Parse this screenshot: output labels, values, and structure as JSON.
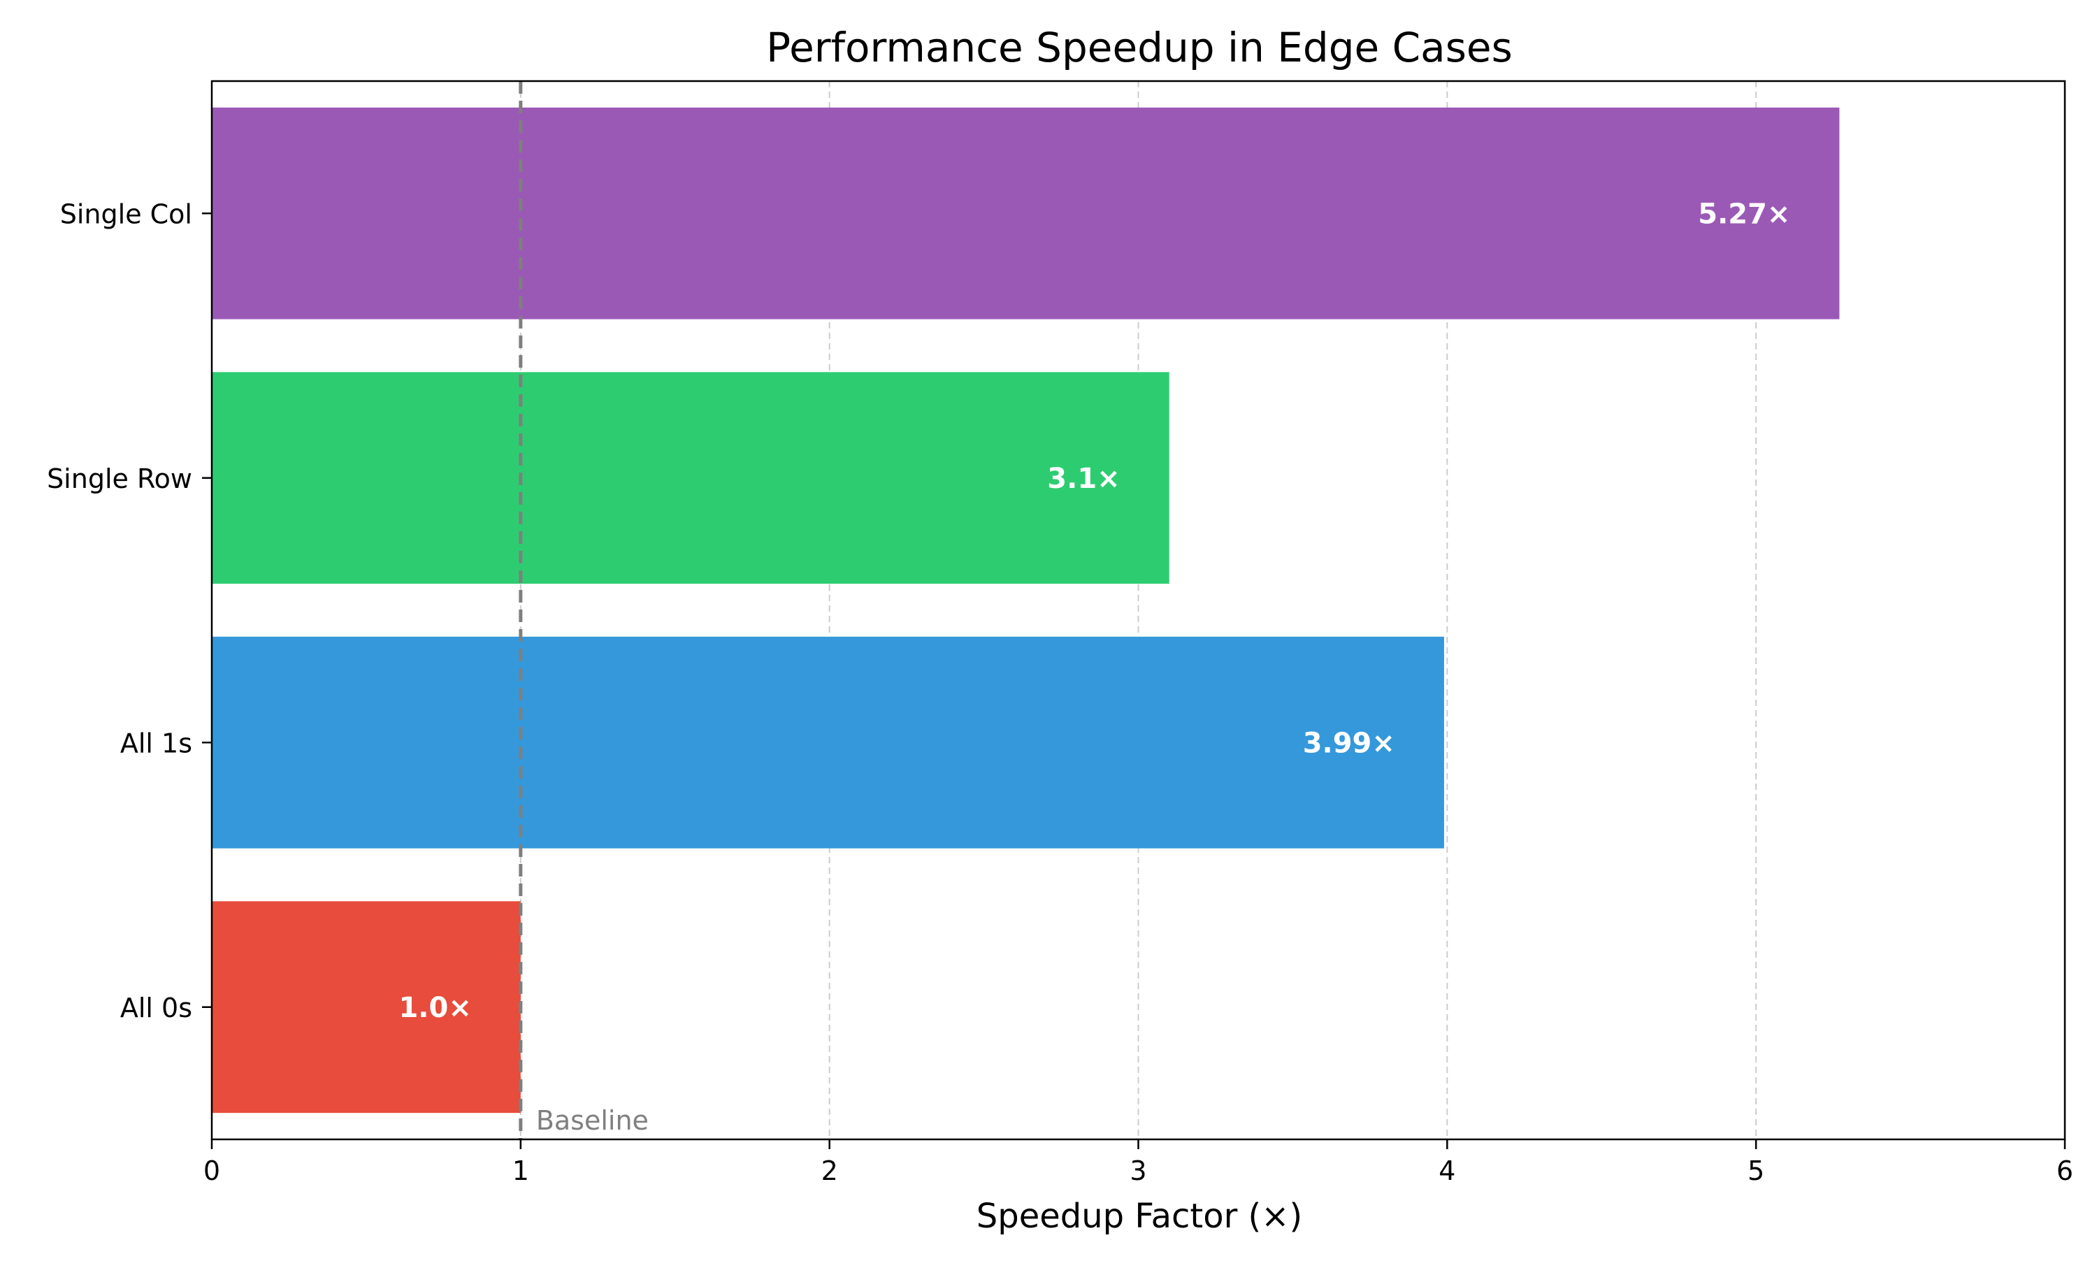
{
  "chart_data": {
    "type": "bar",
    "orientation": "horizontal",
    "title": "Performance Speedup in Edge Cases",
    "xlabel": "Speedup Factor (×)",
    "ylabel": "",
    "xlim": [
      0,
      6
    ],
    "xticks": [
      0,
      1,
      2,
      3,
      4,
      5,
      6
    ],
    "grid": "x, dashed",
    "categories": [
      "All 0s",
      "All 1s",
      "Single Row",
      "Single Col"
    ],
    "values": [
      1.0,
      3.99,
      3.1,
      5.27
    ],
    "value_labels": [
      "1.0×",
      "3.99×",
      "3.1×",
      "5.27×"
    ],
    "colors": [
      "#e74c3c",
      "#3498db",
      "#2ecc71",
      "#9b59b6"
    ],
    "baseline": {
      "value": 1,
      "label": "Baseline",
      "color": "#7f7f7f"
    }
  }
}
